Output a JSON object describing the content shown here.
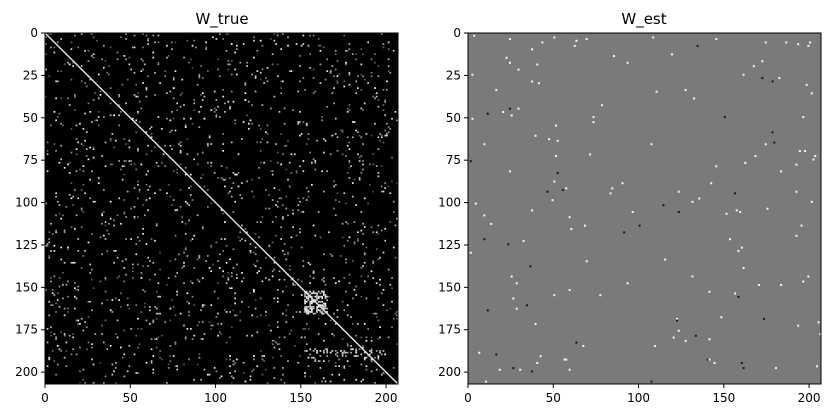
{
  "chart_data": [
    {
      "type": "heatmap",
      "title": "W_true",
      "colormap": "gray",
      "background_color": "#000000",
      "xlabel": "",
      "ylabel": "",
      "xlim": [
        0,
        207
      ],
      "ylim": [
        207,
        0
      ],
      "xticks": [
        0,
        50,
        100,
        150,
        200
      ],
      "yticks": [
        0,
        25,
        50,
        75,
        100,
        125,
        150,
        175,
        200
      ],
      "features": {
        "diagonal": "bright white identity diagonal from (0,0) to (207,207)",
        "off_diagonal": "sparse scattered white pixels over black background",
        "block": "dense bright block near x 155-165, y 155-165"
      }
    },
    {
      "type": "heatmap",
      "title": "W_est",
      "colormap": "gray",
      "background_color": "#7a7a7a",
      "xlabel": "",
      "ylabel": "",
      "xlim": [
        0,
        207
      ],
      "ylim": [
        207,
        0
      ],
      "xticks": [
        0,
        50,
        100,
        150,
        200
      ],
      "yticks": [
        0,
        25,
        50,
        75,
        100,
        125,
        150,
        175,
        200
      ],
      "features": {
        "background": "uniform mid-gray (near-zero values)",
        "points": "sparse isolated white and black pixels"
      }
    }
  ]
}
